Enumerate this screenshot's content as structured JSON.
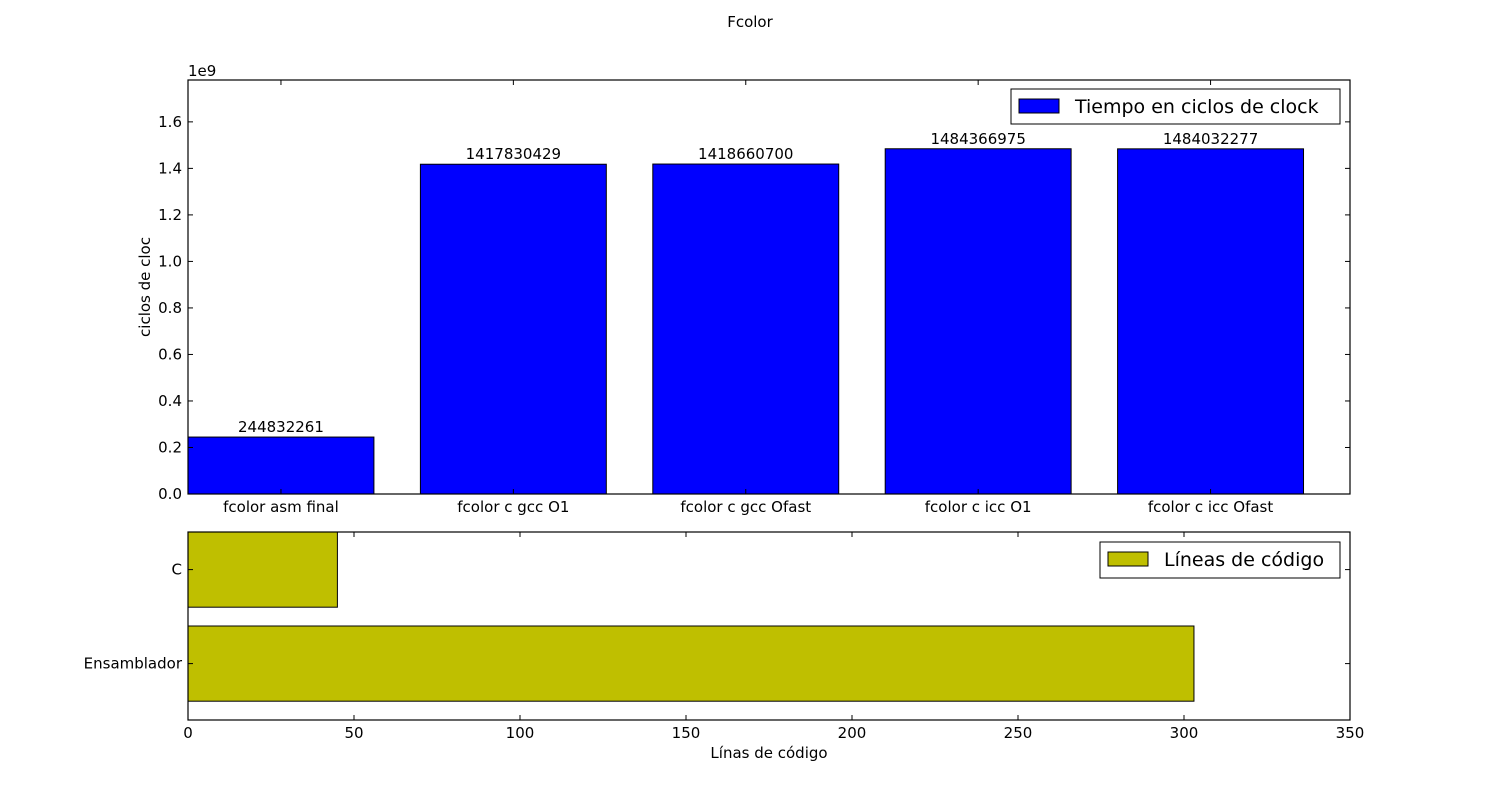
{
  "chart_data": [
    {
      "type": "bar",
      "title": "Fcolor",
      "ylabel": "ciclos de cloc",
      "xlabel": "",
      "offset_label": "1e9",
      "ylim": [
        0,
        1.78
      ],
      "y_ticks": [
        "0.0",
        "0.2",
        "0.4",
        "0.6",
        "0.8",
        "1.0",
        "1.2",
        "1.4",
        "1.6"
      ],
      "categories": [
        "fcolor asm final",
        "fcolor c gcc O1",
        "fcolor c gcc Ofast",
        "fcolor c icc O1",
        "fcolor c icc Ofast"
      ],
      "series": [
        {
          "name": "Tiempo en ciclos de clock",
          "values": [
            244832261,
            1417830429,
            1418660700,
            1484366975,
            1484032277
          ],
          "value_labels": [
            "244832261",
            "1417830429",
            "1418660700",
            "1484366975",
            "1484032277"
          ],
          "color": "#0000ff"
        }
      ],
      "legend_position": "top-right",
      "grid": false
    },
    {
      "type": "bar",
      "orientation": "horizontal",
      "xlabel": "Línas de código",
      "ylabel": "",
      "xlim": [
        0,
        350
      ],
      "x_ticks": [
        "0",
        "50",
        "100",
        "150",
        "200",
        "250",
        "300",
        "350"
      ],
      "categories": [
        "C",
        "Ensamblador"
      ],
      "series": [
        {
          "name": "Líneas de código",
          "values": [
            45,
            303
          ],
          "color": "#bfbf00"
        }
      ],
      "legend_position": "top-right",
      "grid": false
    }
  ]
}
